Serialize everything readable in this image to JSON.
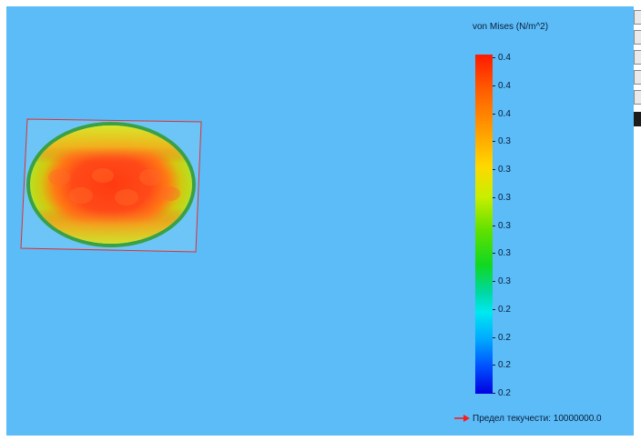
{
  "legend": {
    "title": "von Mises (N/m^2)",
    "labels": [
      "0.4",
      "0.4",
      "0.4",
      "0.3",
      "0.3",
      "0.3",
      "0.3",
      "0.3",
      "0.3",
      "0.2",
      "0.2",
      "0.2",
      "0.2"
    ]
  },
  "yield_strength": {
    "text": "Предел текучести: 10000000.0",
    "arrow_color": "#ff1a1a"
  },
  "colors": {
    "background": "#5bbcf7",
    "outline": "#e03030"
  },
  "toolbar": {
    "icons": [
      "tool-icon",
      "tool-icon",
      "tool-icon",
      "tool-icon",
      "tool-icon",
      "tool-icon"
    ]
  }
}
